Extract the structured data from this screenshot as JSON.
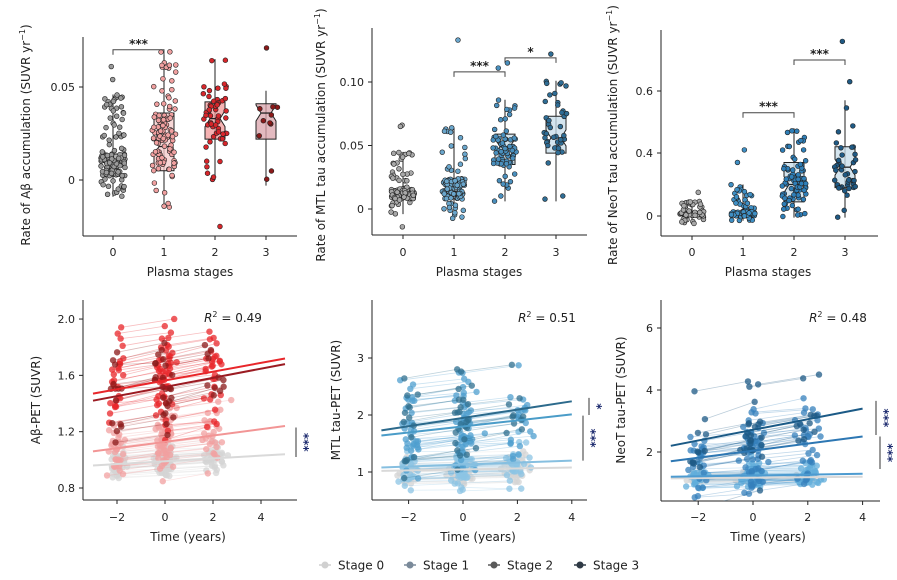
{
  "legend": {
    "items": [
      {
        "label": "Stage 0",
        "color": "#d0d0d0"
      },
      {
        "label": "Stage 1",
        "color": "#7a8a9a"
      },
      {
        "label": "Stage 2",
        "color": "#5a5a5a"
      },
      {
        "label": "Stage 3",
        "color": "#2f3a45"
      }
    ]
  },
  "chart_data": [
    {
      "type": "box",
      "ylabel": "Rate of Aβ accumulation (SUVR yr",
      "ylabel_sup": "−1",
      "ylabel_end": ")",
      "xlabel": "Plasma stages",
      "categories": [
        "0",
        "1",
        "2",
        "3"
      ],
      "yticks": [
        0,
        0.05
      ],
      "ytick_labels": [
        "0",
        "0.05"
      ],
      "ylim": [
        -0.03,
        0.077
      ],
      "boxes": [
        {
          "q1": 0.002,
          "median": 0.006,
          "q3": 0.014,
          "whisker_low": -0.009,
          "whisker_high": 0.046,
          "outliers": [
            0.061,
            0.054
          ]
        },
        {
          "q1": 0.005,
          "median": 0.018,
          "q3": 0.036,
          "whisker_low": -0.015,
          "whisker_high": 0.069,
          "outliers": []
        },
        {
          "q1": 0.022,
          "median": 0.033,
          "q3": 0.042,
          "whisker_low": 0.0,
          "whisker_high": 0.065,
          "outliers": [
            -0.025
          ]
        },
        {
          "q1": 0.022,
          "median": 0.036,
          "q3": 0.041,
          "whisker_low": -0.003,
          "whisker_high": 0.048,
          "outliers": [
            0.071
          ]
        }
      ],
      "box_fill": [
        "#9a9a9a",
        "#f6c9c9",
        "#f39a9a",
        "#d9a3ab"
      ],
      "point_fill": [
        "#9a9a9a",
        "#f0a0a0",
        "#d7262b",
        "#8b1a1a"
      ],
      "significance": [
        {
          "from": 0,
          "to": 1,
          "y": 0.07,
          "label": "***"
        }
      ]
    },
    {
      "type": "box",
      "ylabel": "Rate of MTL tau accumulation (SUVR yr",
      "ylabel_sup": "−1",
      "ylabel_end": ")",
      "xlabel": "Plasma stages",
      "categories": [
        "0",
        "1",
        "2",
        "3"
      ],
      "yticks": [
        0,
        0.05,
        0.1
      ],
      "ytick_labels": [
        "0",
        "0.05",
        "0.10"
      ],
      "ylim": [
        -0.02,
        0.142
      ],
      "boxes": [
        {
          "q1": 0.008,
          "median": 0.012,
          "q3": 0.016,
          "whisker_low": -0.004,
          "whisker_high": 0.045,
          "outliers": [
            0.066,
            0.065,
            -0.014
          ]
        },
        {
          "q1": 0.008,
          "median": 0.014,
          "q3": 0.024,
          "whisker_low": -0.008,
          "whisker_high": 0.064,
          "outliers": [
            0.133
          ]
        },
        {
          "q1": 0.035,
          "median": 0.049,
          "q3": 0.059,
          "whisker_low": 0.006,
          "whisker_high": 0.086,
          "outliers": [
            0.115,
            0.111
          ]
        },
        {
          "q1": 0.044,
          "median": 0.056,
          "q3": 0.073,
          "whisker_low": 0.006,
          "whisker_high": 0.101,
          "outliers": [
            0.122
          ]
        }
      ],
      "box_fill": [
        "#8f8f8f",
        "#9fc3da",
        "#c5dcea",
        "#c5dcea"
      ],
      "point_fill": [
        "#a8a8a8",
        "#6aa6cc",
        "#4a8fbd",
        "#2f6d95"
      ],
      "significance": [
        {
          "from": 1,
          "to": 2,
          "y": 0.108,
          "label": "***"
        },
        {
          "from": 2,
          "to": 3,
          "y": 0.119,
          "label": "*"
        }
      ]
    },
    {
      "type": "box",
      "ylabel": "Rate of NeoT tau accumulation (SUVR yr",
      "ylabel_sup": "−1",
      "ylabel_end": ")",
      "xlabel": "Plasma stages",
      "categories": [
        "0",
        "1",
        "2",
        "3"
      ],
      "yticks": [
        0,
        0.4,
        0.6
      ],
      "ytick_labels": [
        "0",
        "0.4",
        "0.6"
      ],
      "ylim": [
        -0.12,
        0.79
      ],
      "boxes": [
        {
          "q1": 0.0,
          "median": 0.01,
          "q3": 0.02,
          "whisker_low": -0.05,
          "whisker_high": 0.1,
          "outliers": [
            0.15
          ]
        },
        {
          "q1": 0.0,
          "median": 0.02,
          "q3": 0.03,
          "whisker_low": -0.03,
          "whisker_high": 0.2,
          "outliers": [
            0.34,
            0.41
          ]
        },
        {
          "q1": 0.09,
          "median": 0.2,
          "q3": 0.34,
          "whisker_low": -0.01,
          "whisker_high": 0.48,
          "outliers": []
        },
        {
          "q1": 0.18,
          "median": 0.31,
          "q3": 0.42,
          "whisker_low": -0.01,
          "whisker_high": 0.57,
          "outliers": [
            0.63,
            0.76
          ]
        }
      ],
      "box_fill": [
        "#8f8f8f",
        "#7fb3d6",
        "#c5dcea",
        "#c5dcea"
      ],
      "point_fill": [
        "#a8a8a8",
        "#3f8fc4",
        "#2f7fb8",
        "#1f5a85"
      ],
      "significance": [
        {
          "from": 1,
          "to": 2,
          "y": 0.53,
          "label": "***"
        },
        {
          "from": 2,
          "to": 3,
          "y": 0.7,
          "label": "***"
        }
      ]
    },
    {
      "type": "line",
      "ylabel": "Aβ-PET (SUVR)",
      "xlabel": "Time (years)",
      "xticks": [
        -2,
        0,
        2,
        4
      ],
      "xtick_labels": [
        "−2",
        "0",
        "2",
        "4"
      ],
      "yticks": [
        0.8,
        1.2,
        1.6,
        2.0
      ],
      "ytick_labels": [
        "0.8",
        "1.2",
        "1.6",
        "2.0"
      ],
      "xlim": [
        -3.4,
        5.5
      ],
      "ylim": [
        0.71,
        2.13
      ],
      "annotation": {
        "symbol": "R",
        "superscript": "2",
        "text": " = 0.49"
      },
      "stage_colors": [
        "#d4d4d4",
        "#f2a0a0",
        "#e8262a",
        "#8b1a1a"
      ],
      "fits": [
        {
          "stage": "Stage 0",
          "x": [
            -3,
            5
          ],
          "y": [
            0.96,
            1.04
          ],
          "color": "#d9d9d9"
        },
        {
          "stage": "Stage 1",
          "x": [
            -3,
            5
          ],
          "y": [
            1.06,
            1.24
          ],
          "color": "#f29595"
        },
        {
          "stage": "Stage 2",
          "x": [
            -3,
            5
          ],
          "y": [
            1.47,
            1.72
          ],
          "color": "#e8262a"
        },
        {
          "stage": "Stage 3",
          "x": [
            -3,
            5
          ],
          "y": [
            1.42,
            1.68
          ],
          "color": "#9b1b22"
        }
      ],
      "significance": [
        {
          "y_range": [
            1.02,
            1.23
          ],
          "label": "***"
        }
      ]
    },
    {
      "type": "line",
      "ylabel": "MTL tau-PET (SUVR)",
      "xlabel": "Time (years)",
      "xticks": [
        -2,
        0,
        2,
        4
      ],
      "xtick_labels": [
        "−2",
        "0",
        "2",
        "4"
      ],
      "yticks": [
        1,
        2,
        3
      ],
      "ytick_labels": [
        "1",
        "2",
        "3"
      ],
      "xlim": [
        -3.35,
        4.55
      ],
      "ylim": [
        0.51,
        4.02
      ],
      "annotation": {
        "symbol": "R",
        "superscript": "2",
        "text": " = 0.51"
      },
      "stage_colors": [
        "#d4d4d4",
        "#8cc4e4",
        "#4f9fcf",
        "#2f6f8f"
      ],
      "fits": [
        {
          "stage": "Stage 0",
          "x": [
            -3,
            4
          ],
          "y": [
            1.02,
            1.08
          ],
          "color": "#d9d9d9"
        },
        {
          "stage": "Stage 1",
          "x": [
            -3,
            4
          ],
          "y": [
            1.08,
            1.2
          ],
          "color": "#86bfe0"
        },
        {
          "stage": "Stage 2",
          "x": [
            -3,
            4
          ],
          "y": [
            1.64,
            2.01
          ],
          "color": "#4a9cc8"
        },
        {
          "stage": "Stage 3",
          "x": [
            -3,
            4
          ],
          "y": [
            1.73,
            2.24
          ],
          "color": "#2c6a8c"
        }
      ],
      "significance": [
        {
          "y_range": [
            2.0,
            2.3
          ],
          "label": "*"
        },
        {
          "y_range": [
            1.2,
            1.99
          ],
          "label": "***"
        }
      ]
    },
    {
      "type": "line",
      "ylabel": "NeoT tau-PET (SUVR)",
      "xlabel": "Time (years)",
      "xticks": [
        -2,
        0,
        2,
        4
      ],
      "xtick_labels": [
        "−2",
        "0",
        "2",
        "4"
      ],
      "yticks": [
        2,
        4,
        6
      ],
      "ytick_labels": [
        "2",
        "4",
        "6"
      ],
      "xlim": [
        -3.36,
        4.63
      ],
      "ylim": [
        0.42,
        6.9
      ],
      "annotation": {
        "symbol": "R",
        "superscript": "2",
        "text": " = 0.48"
      },
      "stage_colors": [
        "#d4d4d4",
        "#62addb",
        "#3580bc",
        "#1e5a85"
      ],
      "fits": [
        {
          "stage": "Stage 0",
          "x": [
            -3,
            4
          ],
          "y": [
            1.15,
            1.2
          ],
          "color": "#d9d9d9"
        },
        {
          "stage": "Stage 1",
          "x": [
            -3,
            4
          ],
          "y": [
            1.2,
            1.3
          ],
          "color": "#4d9bd0"
        },
        {
          "stage": "Stage 2",
          "x": [
            -3,
            4
          ],
          "y": [
            1.7,
            2.5
          ],
          "color": "#2d77b3"
        },
        {
          "stage": "Stage 3",
          "x": [
            -3,
            4
          ],
          "y": [
            2.2,
            3.4
          ],
          "color": "#1b5a86"
        }
      ],
      "significance": [
        {
          "y_range": [
            2.55,
            3.65
          ],
          "label": "***"
        },
        {
          "y_range": [
            1.45,
            2.5
          ],
          "label": "***"
        }
      ]
    }
  ]
}
